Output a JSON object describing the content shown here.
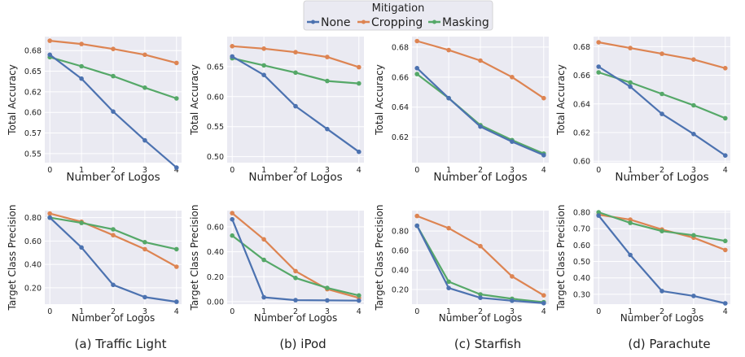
{
  "legend": {
    "title": "Mitigation",
    "entries": [
      "None",
      "Cropping",
      "Masking"
    ]
  },
  "colors": {
    "None": "#4c72b0",
    "Cropping": "#dd8452",
    "Masking": "#55a868"
  },
  "captions": [
    "(a) Traffic Light",
    "(b) iPod",
    "(c) Starfish",
    "(d) Parachute"
  ],
  "chart_data": [
    {
      "type": "line",
      "panel": "(a) Traffic Light",
      "metric": "accuracy",
      "xlabel": "Number of Logos",
      "ylabel": "Total Accuracy",
      "x": [
        0,
        1,
        2,
        3,
        4
      ],
      "ylim": [
        0.539,
        0.692
      ],
      "ytick_labels": [
        "0.55",
        "0.57",
        "0.60",
        "0.62",
        "0.65",
        "0.68"
      ],
      "ytick_values": [
        0.55,
        0.575,
        0.6,
        0.625,
        0.65,
        0.675
      ],
      "series": [
        {
          "name": "None",
          "values": [
            0.67,
            0.641,
            0.601,
            0.566,
            0.533
          ]
        },
        {
          "name": "Cropping",
          "values": [
            0.687,
            0.683,
            0.677,
            0.67,
            0.66
          ]
        },
        {
          "name": "Masking",
          "values": [
            0.667,
            0.656,
            0.644,
            0.63,
            0.617
          ]
        }
      ]
    },
    {
      "type": "line",
      "panel": "(b) iPod",
      "metric": "accuracy",
      "xlabel": "Number of Logos",
      "ylabel": "Total Accuracy",
      "x": [
        0,
        1,
        2,
        3,
        4
      ],
      "ylim": [
        0.49,
        0.7
      ],
      "ytick_labels": [
        "0.50",
        "0.55",
        "0.60",
        "0.65"
      ],
      "ytick_values": [
        0.5,
        0.55,
        0.6,
        0.65
      ],
      "series": [
        {
          "name": "None",
          "values": [
            0.667,
            0.636,
            0.584,
            0.546,
            0.508
          ]
        },
        {
          "name": "Cropping",
          "values": [
            0.684,
            0.68,
            0.674,
            0.666,
            0.649
          ]
        },
        {
          "name": "Masking",
          "values": [
            0.664,
            0.652,
            0.64,
            0.626,
            0.622
          ]
        }
      ]
    },
    {
      "type": "line",
      "panel": "(c) Starfish",
      "metric": "accuracy",
      "xlabel": "Number of Logos",
      "ylabel": "Total Accuracy",
      "x": [
        0,
        1,
        2,
        3,
        4
      ],
      "ylim": [
        0.603,
        0.687
      ],
      "ytick_labels": [
        "0.62",
        "0.64",
        "0.66",
        "0.68"
      ],
      "ytick_values": [
        0.62,
        0.64,
        0.66,
        0.68
      ],
      "series": [
        {
          "name": "None",
          "values": [
            0.666,
            0.646,
            0.627,
            0.617,
            0.608
          ]
        },
        {
          "name": "Cropping",
          "values": [
            0.684,
            0.678,
            0.671,
            0.66,
            0.646
          ]
        },
        {
          "name": "Masking",
          "values": [
            0.662,
            0.646,
            0.628,
            0.618,
            0.609
          ]
        }
      ]
    },
    {
      "type": "line",
      "panel": "(d) Parachute",
      "metric": "accuracy",
      "xlabel": "Number of Logos",
      "ylabel": "Total Accuracy",
      "x": [
        0,
        1,
        2,
        3,
        4
      ],
      "ylim": [
        0.599,
        0.687
      ],
      "ytick_labels": [
        "0.60",
        "0.62",
        "0.64",
        "0.66",
        "0.68"
      ],
      "ytick_values": [
        0.6,
        0.62,
        0.64,
        0.66,
        0.68
      ],
      "series": [
        {
          "name": "None",
          "values": [
            0.666,
            0.652,
            0.633,
            0.619,
            0.604
          ]
        },
        {
          "name": "Cropping",
          "values": [
            0.683,
            0.679,
            0.675,
            0.671,
            0.665
          ]
        },
        {
          "name": "Masking",
          "values": [
            0.662,
            0.655,
            0.647,
            0.639,
            0.63
          ]
        }
      ]
    },
    {
      "type": "line",
      "panel": "(a) Traffic Light",
      "metric": "precision",
      "xlabel": "Number of Logos",
      "ylabel": "Target Class Precision",
      "x": [
        0,
        1,
        2,
        3,
        4
      ],
      "ylim": [
        0.06,
        0.86
      ],
      "ytick_labels": [
        "0.20",
        "0.40",
        "0.60",
        "0.80"
      ],
      "ytick_values": [
        0.2,
        0.4,
        0.6,
        0.8
      ],
      "series": [
        {
          "name": "None",
          "values": [
            0.8,
            0.545,
            0.225,
            0.12,
            0.08
          ]
        },
        {
          "name": "Cropping",
          "values": [
            0.835,
            0.765,
            0.65,
            0.53,
            0.38
          ]
        },
        {
          "name": "Masking",
          "values": [
            0.8,
            0.755,
            0.7,
            0.59,
            0.53
          ]
        }
      ]
    },
    {
      "type": "line",
      "panel": "(b) iPod",
      "metric": "precision",
      "xlabel": "Number of Logos",
      "ylabel": "Target Class Precision",
      "x": [
        0,
        1,
        2,
        3,
        4
      ],
      "ylim": [
        -0.02,
        0.73
      ],
      "ytick_labels": [
        "0.00",
        "0.20",
        "0.40",
        "0.60"
      ],
      "ytick_values": [
        0.0,
        0.2,
        0.4,
        0.6
      ],
      "series": [
        {
          "name": "None",
          "values": [
            0.66,
            0.035,
            0.012,
            0.01,
            0.008
          ]
        },
        {
          "name": "Cropping",
          "values": [
            0.71,
            0.5,
            0.245,
            0.1,
            0.03
          ]
        },
        {
          "name": "Masking",
          "values": [
            0.53,
            0.335,
            0.19,
            0.11,
            0.05
          ]
        }
      ]
    },
    {
      "type": "line",
      "panel": "(c) Starfish",
      "metric": "precision",
      "xlabel": "Number of Logos",
      "ylabel": "Target Class Precision",
      "x": [
        0,
        1,
        2,
        3,
        4
      ],
      "ylim": [
        0.05,
        1.01
      ],
      "ytick_labels": [
        "0.20",
        "0.40",
        "0.60",
        "0.80"
      ],
      "ytick_values": [
        0.2,
        0.4,
        0.6,
        0.8
      ],
      "series": [
        {
          "name": "None",
          "values": [
            0.855,
            0.215,
            0.115,
            0.085,
            0.06
          ]
        },
        {
          "name": "Cropping",
          "values": [
            0.955,
            0.83,
            0.645,
            0.335,
            0.14
          ]
        },
        {
          "name": "Masking",
          "values": [
            0.855,
            0.28,
            0.15,
            0.105,
            0.07
          ]
        }
      ]
    },
    {
      "type": "line",
      "panel": "(d) Parachute",
      "metric": "precision",
      "xlabel": "Number of Logos",
      "ylabel": "Target Class Precision",
      "x": [
        0,
        1,
        2,
        3,
        4
      ],
      "ylim": [
        0.24,
        0.81
      ],
      "ytick_labels": [
        "0.30",
        "0.40",
        "0.50",
        "0.60",
        "0.70",
        "0.80"
      ],
      "ytick_values": [
        0.3,
        0.4,
        0.5,
        0.6,
        0.7,
        0.8
      ],
      "series": [
        {
          "name": "None",
          "values": [
            0.78,
            0.54,
            0.32,
            0.29,
            0.245
          ]
        },
        {
          "name": "Cropping",
          "values": [
            0.785,
            0.755,
            0.695,
            0.645,
            0.57
          ]
        },
        {
          "name": "Masking",
          "values": [
            0.8,
            0.735,
            0.685,
            0.66,
            0.625
          ]
        }
      ]
    }
  ]
}
